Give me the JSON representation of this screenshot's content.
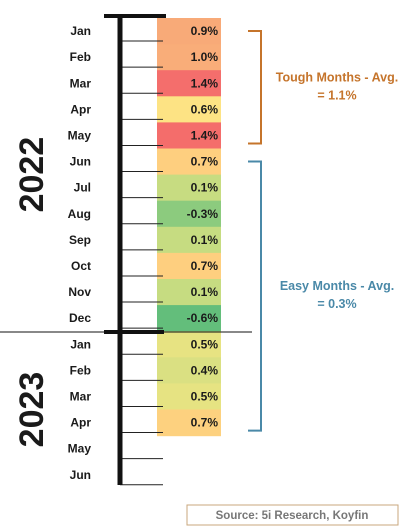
{
  "chart_data": {
    "type": "table",
    "categories": [
      "Jan",
      "Feb",
      "Mar",
      "Apr",
      "May",
      "Jun",
      "Jul",
      "Aug",
      "Sep",
      "Oct",
      "Nov",
      "Dec",
      "Jan",
      "Feb",
      "Mar",
      "Apr",
      "May",
      "Jun"
    ],
    "years": [
      {
        "label": "2022",
        "first_index": 0,
        "last_index": 11
      },
      {
        "label": "2023",
        "first_index": 12,
        "last_index": 17
      }
    ],
    "values": [
      "0.9%",
      "1.0%",
      "1.4%",
      "0.6%",
      "1.4%",
      "0.7%",
      "0.1%",
      "-0.3%",
      "0.1%",
      "0.7%",
      "0.1%",
      "-0.6%",
      "0.5%",
      "0.4%",
      "0.5%",
      "0.7%",
      null,
      null
    ],
    "cell_colors": [
      "#f8aa78",
      "#f9ad79",
      "#f46e6c",
      "#fde384",
      "#f46d6b",
      "#fecf7f",
      "#c7dc81",
      "#8ccb7e",
      "#c6dc81",
      "#fecf7f",
      "#c6dc81",
      "#63be7b",
      "#e7e382",
      "#dae082",
      "#e6e382",
      "#fdd17f",
      null,
      null
    ],
    "brackets": [
      {
        "label_lines": [
          "Tough Months - Avg.",
          "= 1.1%"
        ],
        "first_index": 0,
        "last_index": 4,
        "color": "#c5742b"
      },
      {
        "label_lines": [
          "Easy Months - Avg.",
          "= 0.3%"
        ],
        "first_index": 5,
        "last_index": 15,
        "color": "#4a89a8"
      }
    ],
    "source": "Source: 5i Research, Koyfin"
  }
}
